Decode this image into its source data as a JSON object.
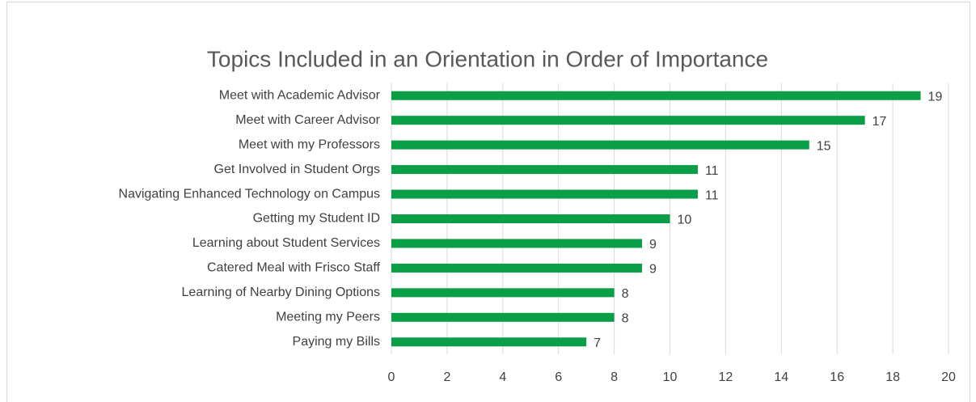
{
  "chart_data": {
    "type": "bar",
    "orientation": "horizontal",
    "title": "Topics Included in an Orientation in Order of Importance",
    "categories": [
      "Meet with Academic Advisor",
      "Meet with Career Advisor",
      "Meet with my Professors",
      "Get Involved in Student Orgs",
      "Navigating Enhanced Technology on Campus",
      "Getting my Student ID",
      "Learning about Student Services",
      "Catered Meal with Frisco Staff",
      "Learning of Nearby Dining Options",
      "Meeting my Peers",
      "Paying my Bills"
    ],
    "values": [
      19,
      17,
      15,
      11,
      11,
      10,
      9,
      9,
      8,
      8,
      7
    ],
    "color": "#0a9e47",
    "xlim": [
      0,
      20
    ],
    "xticks": [
      0,
      2,
      4,
      6,
      8,
      10,
      12,
      14,
      16,
      18,
      20
    ],
    "grid": true
  }
}
